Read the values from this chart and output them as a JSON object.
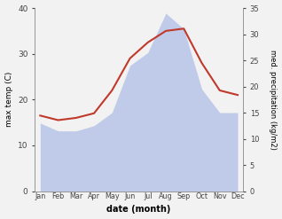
{
  "months": [
    "Jan",
    "Feb",
    "Mar",
    "Apr",
    "May",
    "Jun",
    "Jul",
    "Aug",
    "Sep",
    "Oct",
    "Nov",
    "Dec"
  ],
  "temperature": [
    16.5,
    15.5,
    16.0,
    17.0,
    22.0,
    29.0,
    32.5,
    35.0,
    35.5,
    28.0,
    22.0,
    21.0
  ],
  "precipitation_right": [
    13.0,
    11.5,
    11.5,
    12.5,
    15.0,
    24.0,
    26.5,
    34.0,
    31.0,
    19.5,
    15.0,
    15.0
  ],
  "temp_color": "#c0392b",
  "precip_color": "#b8c4e8",
  "ylabel_left": "max temp (C)",
  "ylabel_right": "med. precipitation (kg/m2)",
  "xlabel": "date (month)",
  "ylim_left": [
    0,
    40
  ],
  "ylim_right": [
    0,
    35
  ],
  "yticks_left": [
    0,
    10,
    20,
    30,
    40
  ],
  "yticks_right": [
    0,
    5,
    10,
    15,
    20,
    25,
    30,
    35
  ],
  "background_color": "#f2f2f2"
}
